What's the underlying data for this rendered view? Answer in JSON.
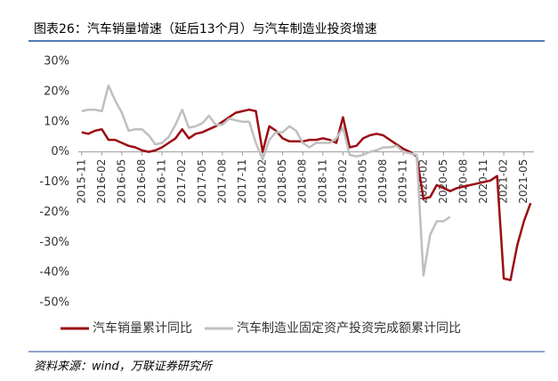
{
  "chart_data": {
    "type": "line",
    "title": "图表26：汽车销量增速（延后13个月）与汽车制造业投资增速",
    "source": "资料来源：wind，万联证券研究所",
    "categories": [
      "2015-11",
      null,
      null,
      "2016-02",
      null,
      null,
      "2016-05",
      null,
      null,
      "2016-08",
      null,
      null,
      "2016-11",
      null,
      null,
      "2017-02",
      null,
      null,
      "2017-05",
      null,
      null,
      "2017-08",
      null,
      null,
      "2017-11",
      null,
      null,
      "2018-02",
      null,
      null,
      "2018-05",
      null,
      null,
      "2018-08",
      null,
      null,
      "2018-11",
      null,
      null,
      "2019-02",
      null,
      null,
      "2019-05",
      null,
      null,
      "2019-08",
      null,
      null,
      "2019-11",
      null,
      null,
      "2020-02",
      null,
      null,
      "2020-05",
      null,
      null,
      "2020-08",
      null,
      null,
      "2020-11",
      null,
      null,
      "2021-02",
      null,
      null,
      "2021-05",
      null
    ],
    "series": [
      {
        "name": "汽车销量累计同比",
        "color": "#9b0d14",
        "values": [
          6.5,
          6,
          7,
          7.5,
          4,
          4,
          3,
          2,
          1.5,
          0.5,
          0,
          0.5,
          1.5,
          3,
          4.5,
          7.5,
          4.5,
          6,
          6.5,
          7.5,
          8.5,
          10,
          11.5,
          13,
          13.5,
          14,
          13.5,
          0,
          8.5,
          7,
          4.5,
          3.5,
          3.5,
          3.5,
          4,
          4,
          4.5,
          4,
          3,
          11.5,
          1.5,
          2,
          4.5,
          5.5,
          6,
          5.5,
          4,
          2.5,
          1,
          0,
          -1.5,
          -15.5,
          -15,
          -11,
          -12,
          -13,
          -12,
          -11.5,
          -11,
          -10.5,
          -10,
          -9.5,
          -8,
          -42,
          -42.5,
          -31,
          -23,
          -17
        ]
      },
      {
        "name": "汽车制造业固定资产投资完成额累计同比",
        "color": "#bfbfbf",
        "values": [
          13.5,
          14,
          14,
          13.5,
          22,
          17,
          13,
          7,
          7.5,
          7.5,
          5.5,
          2.5,
          3,
          5,
          9,
          14,
          8,
          8.5,
          9.5,
          12,
          9,
          9,
          11,
          10.5,
          10,
          10,
          3,
          -2.5,
          4,
          6.5,
          6.5,
          8.5,
          7,
          3,
          1.5,
          3,
          3,
          3,
          4.5,
          8,
          -1,
          -1.5,
          -1,
          0,
          0.5,
          1.5,
          1.5,
          2,
          0,
          -0.5,
          -1,
          -41,
          -27.5,
          -23,
          -23,
          -21.5,
          null,
          null,
          null,
          null,
          null,
          null,
          null,
          null,
          null,
          null,
          null,
          null
        ]
      }
    ],
    "ylim": [
      -50,
      30
    ],
    "yticks": [
      {
        "value": 30,
        "label": "30%"
      },
      {
        "value": 20,
        "label": "20%"
      },
      {
        "value": 10,
        "label": "10%"
      },
      {
        "value": 0,
        "label": "0%"
      },
      {
        "value": -10,
        "label": "-10%"
      },
      {
        "value": -20,
        "label": "-20%"
      },
      {
        "value": -30,
        "label": "-30%"
      },
      {
        "value": -40,
        "label": "-40%"
      },
      {
        "value": -50,
        "label": "-50%"
      }
    ],
    "grid": false,
    "legend": "bottom"
  }
}
